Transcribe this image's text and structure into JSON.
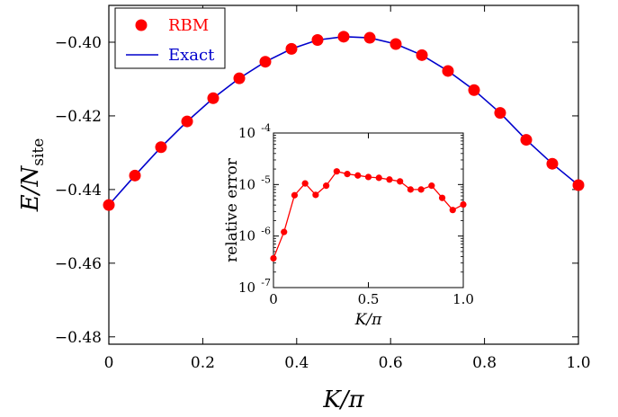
{
  "chart_data": [
    {
      "type": "scatter+line",
      "title": "",
      "xlabel": "K/π",
      "ylabel": "E/N_site",
      "ylabel_main": "E/N",
      "ylabel_sub": "site",
      "xlim": [
        0,
        1
      ],
      "ylim": [
        -0.482,
        -0.39
      ],
      "xticks": [
        "0",
        "0.2",
        "0.4",
        "0.6",
        "0.8",
        "1.0"
      ],
      "yticks": [
        "−0.40",
        "−0.42",
        "−0.44",
        "−0.46",
        "−0.48"
      ],
      "legend_position": "top-left",
      "series": [
        {
          "name": "RBM",
          "kind": "markers",
          "color": "#ff0000",
          "x": [
            0,
            0.0556,
            0.1111,
            0.1667,
            0.2222,
            0.2778,
            0.3333,
            0.3889,
            0.4444,
            0.5,
            0.5556,
            0.6111,
            0.6667,
            0.7222,
            0.7778,
            0.8333,
            0.8889,
            0.9444,
            1.0
          ],
          "y": [
            -0.4442,
            -0.4362,
            -0.4285,
            -0.4215,
            -0.4152,
            -0.4098,
            -0.4053,
            -0.4018,
            -0.3994,
            -0.3985,
            -0.3988,
            -0.4005,
            -0.4035,
            -0.4078,
            -0.413,
            -0.4192,
            -0.4265,
            -0.433,
            -0.4388
          ]
        },
        {
          "name": "Exact",
          "kind": "line",
          "color": "#0000cc",
          "x": [
            0,
            0.0556,
            0.1111,
            0.1667,
            0.2222,
            0.2778,
            0.3333,
            0.3889,
            0.4444,
            0.5,
            0.5556,
            0.6111,
            0.6667,
            0.7222,
            0.7778,
            0.8333,
            0.8889,
            0.9444,
            1.0
          ],
          "y": [
            -0.4442,
            -0.4362,
            -0.4285,
            -0.4215,
            -0.4152,
            -0.4098,
            -0.4053,
            -0.4018,
            -0.3994,
            -0.3985,
            -0.3988,
            -0.4005,
            -0.4035,
            -0.4078,
            -0.413,
            -0.4192,
            -0.4265,
            -0.433,
            -0.4388
          ]
        }
      ]
    },
    {
      "type": "line",
      "title": "",
      "xlabel": "K/π",
      "ylabel": "relative error",
      "yscale": "log",
      "xlim": [
        0,
        1
      ],
      "ylim": [
        1e-07,
        0.0001
      ],
      "xticks": [
        "0",
        "0.5",
        "1.0"
      ],
      "yticks": [
        "10^-4",
        "10^-5",
        "10^-6",
        "10^-7"
      ],
      "series": [
        {
          "name": "",
          "color": "#ff0000",
          "x": [
            0,
            0.0556,
            0.1111,
            0.1667,
            0.2222,
            0.2778,
            0.3333,
            0.3889,
            0.4444,
            0.5,
            0.5556,
            0.6111,
            0.6667,
            0.7222,
            0.7778,
            0.8333,
            0.8889,
            0.9444,
            1.0
          ],
          "y": [
            3.7e-07,
            1.2e-06,
            6.2e-06,
            1.05e-05,
            6.3e-06,
            9.5e-06,
            1.8e-05,
            1.6e-05,
            1.5e-05,
            1.4e-05,
            1.35e-05,
            1.25e-05,
            1.15e-05,
            8e-06,
            8e-06,
            9.5e-06,
            5.5e-06,
            3.2e-06,
            4.1e-06
          ]
        }
      ]
    }
  ]
}
